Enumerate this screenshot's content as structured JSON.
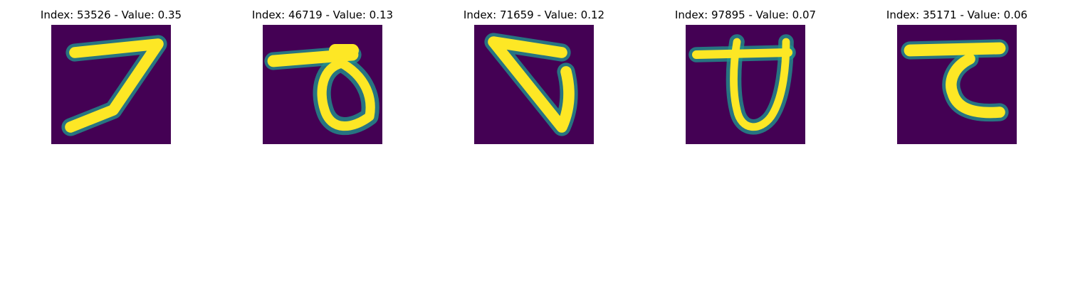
{
  "colors": {
    "background": "#ffffff",
    "digit_bg": "#440154",
    "digit_mid": "#21918c",
    "digit_fg": "#fde725"
  },
  "panels": [
    {
      "title": "Index: 53526 - Value: 0.35",
      "glyph": "seven"
    },
    {
      "title": "Index: 46719 - Value: 0.13",
      "glyph": "bar-loop"
    },
    {
      "title": "Index: 71659 - Value: 0.12",
      "glyph": "wedge"
    },
    {
      "title": "Index: 97895 - Value: 0.07",
      "glyph": "bar-oval"
    },
    {
      "title": "Index: 35171 - Value: 0.06",
      "glyph": "bar-hook"
    }
  ]
}
